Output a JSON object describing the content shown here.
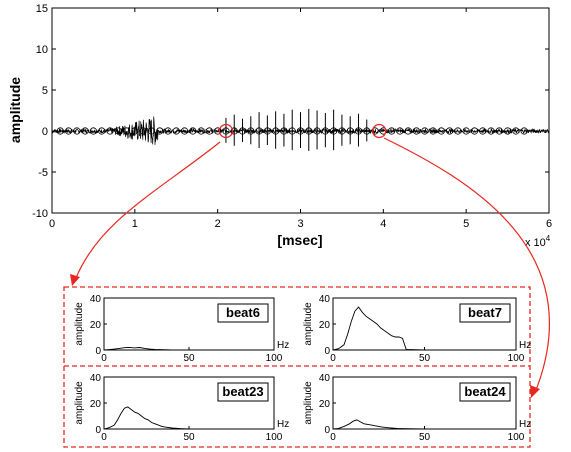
{
  "chart_data": [
    {
      "type": "line",
      "xlabel": "[msec]",
      "ylabel": "amplitude",
      "x_scale_label": "x 10",
      "x_scale_exp": "4",
      "xlim": [
        0,
        6
      ],
      "ylim": [
        -10,
        15
      ],
      "xticks": [
        "0",
        "1",
        "2",
        "3",
        "4",
        "5",
        "6"
      ],
      "yticks": [
        "-10",
        "-5",
        "0",
        "5",
        "10",
        "15"
      ],
      "beat_markers_x": [
        0.1,
        0.2,
        0.3,
        0.4,
        0.5,
        0.6,
        0.7,
        0.8,
        0.9,
        1.0,
        1.1,
        1.2,
        1.3,
        1.4,
        1.5,
        1.6,
        1.7,
        1.8,
        1.9,
        2.0,
        2.1,
        2.2,
        2.3,
        2.4,
        2.5,
        2.6,
        2.7,
        2.8,
        2.9,
        3.0,
        3.1,
        3.2,
        3.3,
        3.4,
        3.5,
        3.6,
        3.7,
        3.8,
        3.9,
        4.0,
        4.1,
        4.2,
        4.3,
        4.4,
        4.5,
        4.6,
        4.7,
        4.8,
        4.9,
        5.0,
        5.1,
        5.2,
        5.3,
        5.4,
        5.5,
        5.6,
        5.7
      ],
      "spikes": [
        {
          "x": 2.1,
          "amp": 1.6
        },
        {
          "x": 2.2,
          "amp": 2.0
        },
        {
          "x": 2.3,
          "amp": 1.5
        },
        {
          "x": 2.4,
          "amp": 1.8
        },
        {
          "x": 2.5,
          "amp": 2.3
        },
        {
          "x": 2.6,
          "amp": 1.9
        },
        {
          "x": 2.7,
          "amp": 2.4
        },
        {
          "x": 2.8,
          "amp": 2.1
        },
        {
          "x": 2.9,
          "amp": 2.6
        },
        {
          "x": 3.0,
          "amp": 2.3
        },
        {
          "x": 3.1,
          "amp": 2.7
        },
        {
          "x": 3.2,
          "amp": 2.5
        },
        {
          "x": 3.3,
          "amp": 2.2
        },
        {
          "x": 3.4,
          "amp": 2.6
        },
        {
          "x": 3.5,
          "amp": 2.0
        },
        {
          "x": 3.6,
          "amp": 1.8
        },
        {
          "x": 3.7,
          "amp": 2.1
        },
        {
          "x": 3.8,
          "amp": 1.4
        }
      ],
      "burst_range": [
        0.7,
        1.28
      ],
      "burst_peak_amp": 1.7,
      "highlighted_beats": [
        2.1,
        3.95
      ]
    },
    {
      "type": "line",
      "title": "beat6",
      "ylabel": "amplitude",
      "xunit": "Hz",
      "xlim": [
        0,
        100
      ],
      "ylim": [
        0,
        40
      ],
      "xticks": [
        "0",
        "50",
        "100"
      ],
      "yticks": [
        "0",
        "20",
        "40"
      ],
      "x": [
        0,
        3,
        6,
        9,
        12,
        15,
        18,
        21,
        24,
        27,
        30,
        35,
        40,
        50,
        60,
        70,
        80,
        90,
        100
      ],
      "y": [
        0,
        0.3,
        0.7,
        1.2,
        1.8,
        2.0,
        1.6,
        1.9,
        1.2,
        0.7,
        0.4,
        0.2,
        0.1,
        0,
        0,
        0,
        0,
        0,
        0
      ]
    },
    {
      "type": "line",
      "title": "beat7",
      "ylabel": "amplitude",
      "xunit": "Hz",
      "xlim": [
        0,
        100
      ],
      "ylim": [
        0,
        40
      ],
      "xticks": [
        "0",
        "50",
        "100"
      ],
      "yticks": [
        "0",
        "20",
        "40"
      ],
      "x": [
        0,
        3,
        6,
        8,
        10,
        12,
        14,
        16,
        18,
        20,
        22,
        24,
        26,
        28,
        30,
        32,
        34,
        36,
        38,
        40,
        50,
        60,
        70,
        80,
        90,
        100
      ],
      "y": [
        0,
        1,
        4,
        12,
        22,
        30,
        33,
        29,
        26,
        24,
        22,
        20,
        17,
        15,
        13,
        11,
        10,
        10,
        9,
        0.5,
        0,
        0,
        0,
        0,
        0,
        0
      ]
    },
    {
      "type": "line",
      "title": "beat23",
      "ylabel": "amplitude",
      "xunit": "Hz",
      "xlim": [
        0,
        100
      ],
      "ylim": [
        0,
        40
      ],
      "xticks": [
        "0",
        "50",
        "100"
      ],
      "yticks": [
        "0",
        "20",
        "40"
      ],
      "x": [
        0,
        3,
        6,
        8,
        10,
        12,
        14,
        16,
        18,
        20,
        22,
        24,
        26,
        28,
        30,
        32,
        34,
        36,
        40,
        45,
        50,
        60,
        70,
        80,
        90,
        100
      ],
      "y": [
        0,
        1,
        3,
        7,
        12,
        16,
        17,
        15,
        13,
        12,
        10,
        8,
        7,
        5,
        4,
        3,
        2,
        1.5,
        0.8,
        0.3,
        0,
        0,
        0,
        0,
        0,
        0
      ]
    },
    {
      "type": "line",
      "title": "beat24",
      "ylabel": "amplitude",
      "xunit": "Hz",
      "xlim": [
        0,
        100
      ],
      "ylim": [
        0,
        40
      ],
      "xticks": [
        "0",
        "50",
        "100"
      ],
      "yticks": [
        "0",
        "20",
        "40"
      ],
      "x": [
        0,
        3,
        6,
        9,
        11,
        13,
        15,
        17,
        19,
        21,
        23,
        25,
        27,
        30,
        35,
        40,
        50,
        60,
        70,
        80,
        90,
        100
      ],
      "y": [
        0,
        0.5,
        2,
        4,
        6,
        7,
        5.5,
        4,
        3.5,
        3,
        2.5,
        2,
        1.5,
        1,
        0.5,
        0.2,
        0,
        0,
        0,
        0,
        0,
        0
      ]
    }
  ],
  "colors": {
    "highlight": "#e8281f",
    "signal": "#000000"
  }
}
